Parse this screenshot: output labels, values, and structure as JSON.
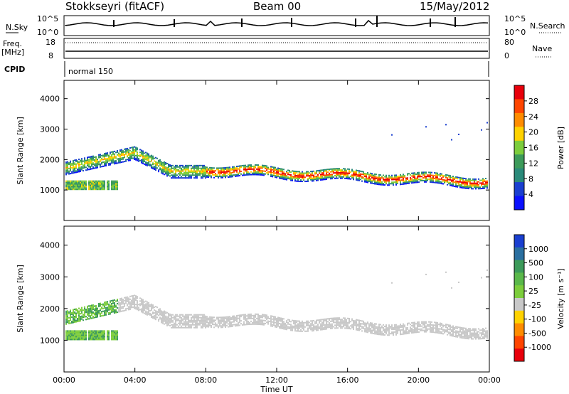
{
  "header": {
    "station": "Stokkseyri (fitACF)",
    "beam": "Beam 00",
    "date": "15/May/2012"
  },
  "summary_panels": {
    "nsky_label": "N.Sky",
    "nsky_ticks": [
      "10^5",
      "10^0"
    ],
    "nsearch_label": "N.Search",
    "nsearch_ticks": [
      "10^5",
      "10^0"
    ],
    "freq_label_line1": "Freq.",
    "freq_label_line2": "[MHz]",
    "freq_ticks": [
      "18",
      "8"
    ],
    "nave_label": "Nave",
    "nave_ticks": [
      "80",
      "0"
    ],
    "cpid_label": "CPID",
    "cpid_value": "normal 150"
  },
  "colorbars": {
    "power": {
      "label": "Power [dB]",
      "ticks": [
        "28",
        "24",
        "20",
        "16",
        "12",
        "8",
        "4"
      ],
      "colors": [
        "#e8000b",
        "#ff4500",
        "#ff8c00",
        "#ffd200",
        "#7ccd3c",
        "#3c9a5a",
        "#2a8a7a",
        "#1a3fd0",
        "#0a10ff"
      ]
    },
    "velocity": {
      "label": "Velocity [m s⁻¹]",
      "ticks": [
        "1000",
        "500",
        "100",
        "25",
        "-25",
        "-100",
        "-500",
        "-1000"
      ],
      "colors": [
        "#1a3fd0",
        "#2a6fa0",
        "#3c9a5a",
        "#5ab84a",
        "#7ccd3c",
        "#c8c8c8",
        "#ffd200",
        "#ff8c00",
        "#ff4500",
        "#e8000b"
      ]
    }
  },
  "chart_data": [
    {
      "type": "heatmap",
      "title": "Power",
      "ylabel": "Slant Range [km]",
      "xlabel": "",
      "xlim": [
        "00:00",
        "24:00"
      ],
      "ylim": [
        0,
        4600
      ],
      "y_ticks": [
        1000,
        2000,
        3000,
        4000
      ],
      "colorbar_label": "Power [dB]",
      "colorbar_range": [
        0,
        32
      ]
    },
    {
      "type": "heatmap",
      "title": "Velocity",
      "ylabel": "Slant Range [km]",
      "xlabel": "Time UT",
      "xlim": [
        "00:00",
        "24:00"
      ],
      "ylim": [
        0,
        4600
      ],
      "y_ticks": [
        1000,
        2000,
        3000,
        4000
      ],
      "x_ticks": [
        "00:00",
        "04:00",
        "08:00",
        "12:00",
        "16:00",
        "20:00",
        "00:00"
      ],
      "colorbar_label": "Velocity [m s⁻¹]",
      "colorbar_range": [
        -1000,
        1000
      ]
    }
  ]
}
